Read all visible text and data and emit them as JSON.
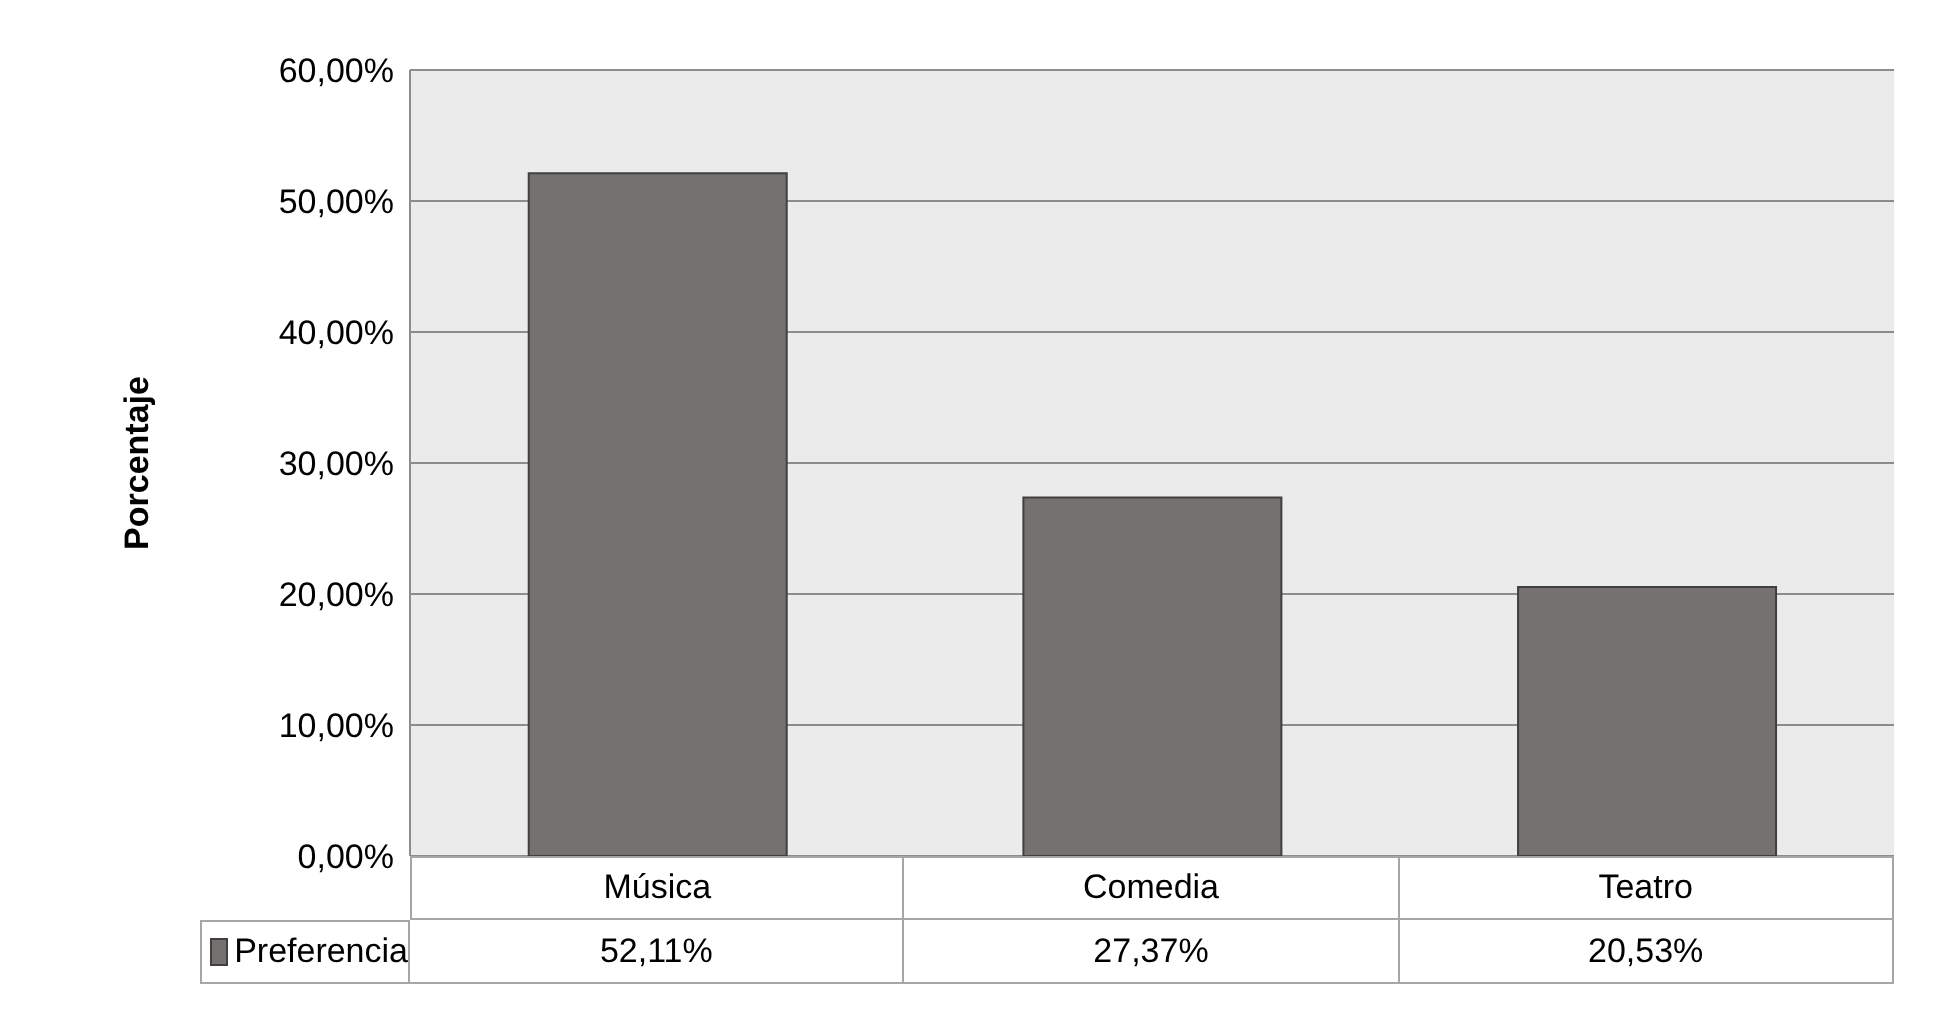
{
  "chart_data": {
    "type": "bar",
    "ylabel": "Porcentaje",
    "categories": [
      "Música",
      "Comedia",
      "Teatro"
    ],
    "series": [
      {
        "name": "Preferencia",
        "color": "#767171",
        "values": [
          52.11,
          27.37,
          20.53
        ],
        "value_labels": [
          "52,11%",
          "27,37%",
          "20,53%"
        ]
      }
    ],
    "ylim": [
      0,
      60
    ],
    "yticks": [
      {
        "value": 0,
        "label": "0,00%"
      },
      {
        "value": 10,
        "label": "10,00%"
      },
      {
        "value": 20,
        "label": "20,00%"
      },
      {
        "value": 30,
        "label": "30,00%"
      },
      {
        "value": 40,
        "label": "40,00%"
      },
      {
        "value": 50,
        "label": "50,00%"
      },
      {
        "value": 60,
        "label": "60,00%"
      }
    ],
    "grid": "y",
    "legend": "bottom"
  }
}
